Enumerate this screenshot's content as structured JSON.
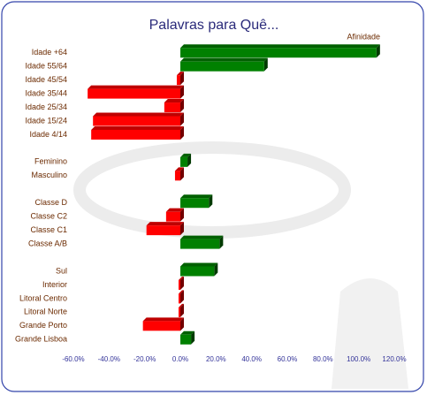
{
  "chart_data": {
    "type": "bar",
    "orientation": "horizontal",
    "title": "Palavras para Quê...",
    "categories": [
      "Idade +64",
      "Idade 55/64",
      "Idade 45/54",
      "Idade 35/44",
      "Idade 25/34",
      "Idade 15/24",
      "Idade 4/14",
      null,
      "Feminino",
      "Masculino",
      null,
      "Classe D",
      "Classe C2",
      "Classe C1",
      "Classe A/B",
      null,
      "Sul",
      "Interior",
      "Litoral Centro",
      "Litoral Norte",
      "Grande Porto",
      "Grande Lisboa"
    ],
    "series": [
      {
        "name": "Afinidade",
        "color": "#008000",
        "values": [
          110,
          47,
          -2,
          -52,
          -9,
          -49,
          -50,
          null,
          4,
          -3,
          null,
          16,
          -8,
          -19,
          22,
          null,
          19,
          -1,
          -1,
          -1,
          -21,
          6
        ]
      }
    ],
    "positive_color": "#008000",
    "negative_color": "#ff0000",
    "xlim": [
      -60,
      120
    ],
    "xticks": [
      {
        "value": -60,
        "label": "-60.0%"
      },
      {
        "value": -40,
        "label": "-40.0%"
      },
      {
        "value": -20,
        "label": "-20.0%"
      },
      {
        "value": 0,
        "label": "0.0%"
      },
      {
        "value": 20,
        "label": "20.0%"
      },
      {
        "value": 40,
        "label": "40.0%"
      },
      {
        "value": 60,
        "label": "60.0%"
      },
      {
        "value": 80,
        "label": "80.0%"
      },
      {
        "value": 100,
        "label": "100.0%"
      },
      {
        "value": 120,
        "label": "120.0%"
      }
    ],
    "grid": false,
    "legend": "top-right"
  }
}
